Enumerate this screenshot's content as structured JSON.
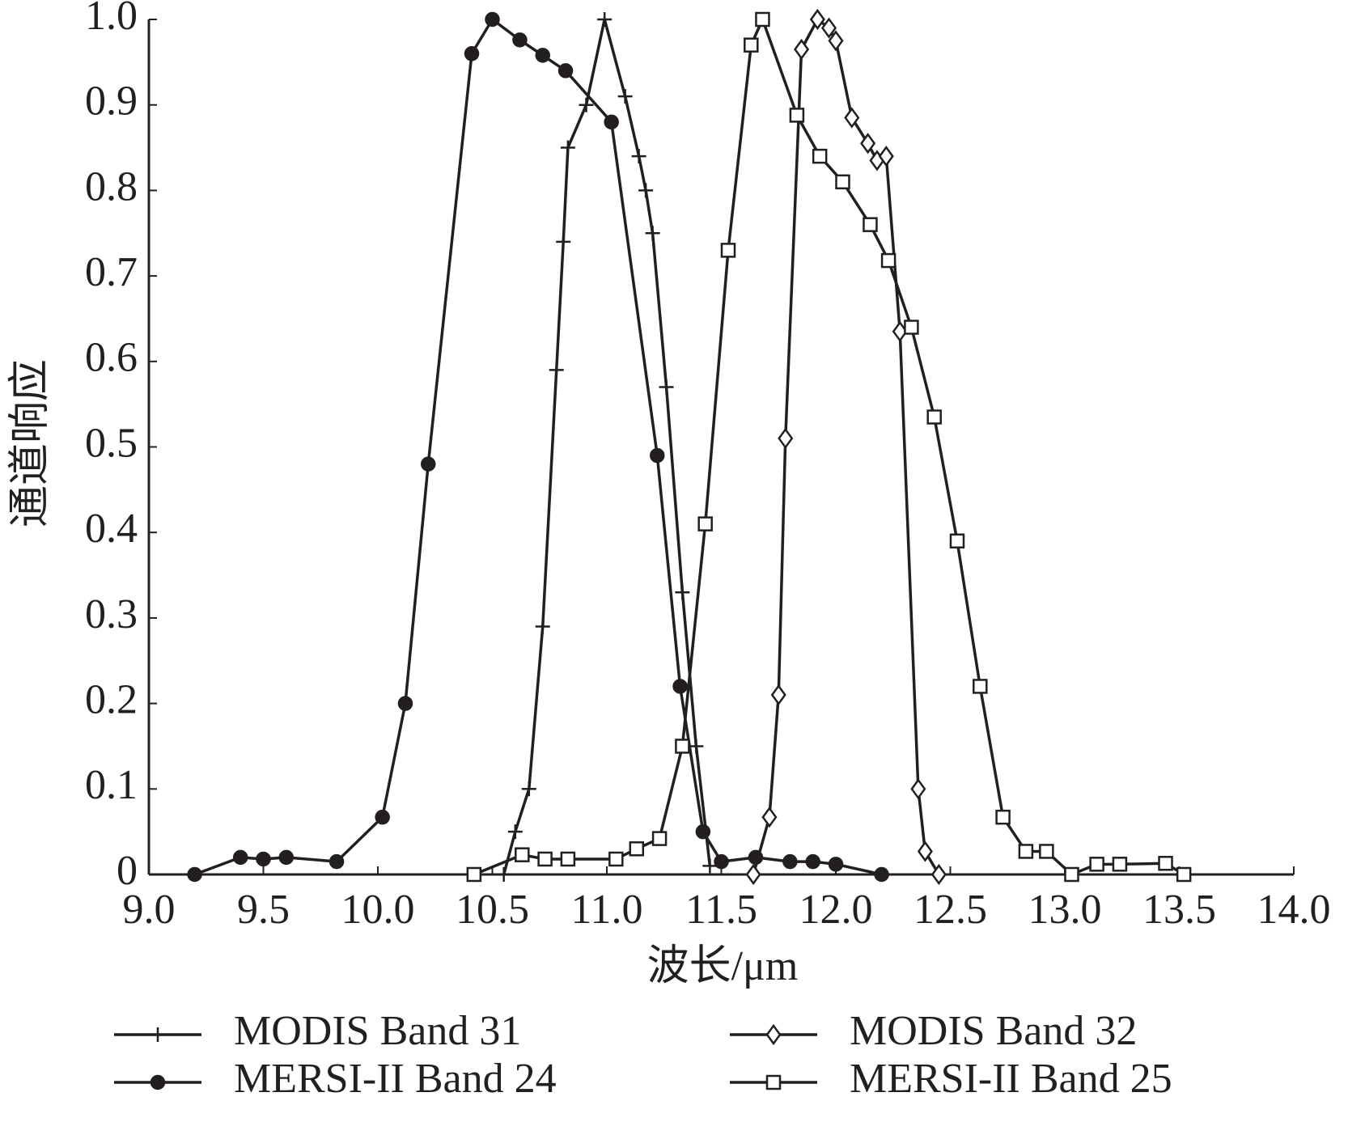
{
  "chart_data": {
    "type": "line",
    "x_label": "波长/μm",
    "y_label": "通道响应",
    "xlim": [
      9,
      14
    ],
    "ylim": [
      0,
      1
    ],
    "xticks": [
      {
        "value": 9,
        "label": "9.0"
      },
      {
        "value": 9.5,
        "label": "9.5"
      },
      {
        "value": 10,
        "label": "10.0"
      },
      {
        "value": 10.5,
        "label": "10.5"
      },
      {
        "value": 11,
        "label": "11.0"
      },
      {
        "value": 11.5,
        "label": "11.5"
      },
      {
        "value": 12,
        "label": "12.0"
      },
      {
        "value": 12.5,
        "label": "12.5"
      },
      {
        "value": 13,
        "label": "13.0"
      },
      {
        "value": 13.5,
        "label": "13.5"
      },
      {
        "value": 14,
        "label": "14.0"
      }
    ],
    "yticks": [
      0,
      0.1,
      0.2,
      0.3,
      0.4,
      0.5,
      0.6,
      0.7,
      0.8,
      0.9,
      {
        "value": 1,
        "label": "1.0"
      }
    ],
    "color": "#231f20",
    "series": [
      {
        "name": "MODIS Band 31",
        "marker": "plus",
        "x": [
          10.55,
          10.6,
          10.66,
          10.72,
          10.78,
          10.81,
          10.83,
          10.91,
          10.99,
          11.08,
          11.14,
          11.17,
          11.2,
          11.26,
          11.33,
          11.39,
          11.45
        ],
        "values": [
          0,
          0.05,
          0.1,
          0.29,
          0.59,
          0.74,
          0.85,
          0.9,
          1.0,
          0.91,
          0.84,
          0.8,
          0.75,
          0.57,
          0.33,
          0.15,
          0.01
        ]
      },
      {
        "name": "MODIS Band 32",
        "marker": "diamond",
        "x": [
          11.64,
          11.71,
          11.75,
          11.78,
          11.85,
          11.92,
          11.97,
          12.0,
          12.07,
          12.14,
          12.18,
          12.22,
          12.28,
          12.36,
          12.39,
          12.45
        ],
        "values": [
          0,
          0.067,
          0.21,
          0.51,
          0.965,
          1.0,
          0.99,
          0.975,
          0.885,
          0.855,
          0.835,
          0.84,
          0.635,
          0.1,
          0.027,
          0
        ]
      },
      {
        "name": "MERSI-II Band 24",
        "marker": "circle",
        "x": [
          9.2,
          9.4,
          9.5,
          9.6,
          9.82,
          10.02,
          10.12,
          10.22,
          10.41,
          10.5,
          10.62,
          10.72,
          10.82,
          11.02,
          11.22,
          11.32,
          11.42,
          11.5,
          11.65,
          11.8,
          11.9,
          12.0,
          12.2
        ],
        "values": [
          0,
          0.02,
          0.018,
          0.02,
          0.015,
          0.067,
          0.2,
          0.48,
          0.96,
          1.0,
          0.976,
          0.958,
          0.94,
          0.88,
          0.49,
          0.22,
          0.05,
          0.015,
          0.02,
          0.015,
          0.015,
          0.012,
          0
        ]
      },
      {
        "name": "MERSI-II Band 25",
        "marker": "square",
        "x": [
          10.42,
          10.63,
          10.73,
          10.83,
          11.04,
          11.13,
          11.23,
          11.33,
          11.43,
          11.53,
          11.63,
          11.68,
          11.83,
          11.93,
          12.03,
          12.15,
          12.23,
          12.33,
          12.43,
          12.53,
          12.63,
          12.73,
          12.83,
          12.92,
          13.03,
          13.14,
          13.24,
          13.44,
          13.52
        ],
        "values": [
          0,
          0.023,
          0.018,
          0.018,
          0.018,
          0.03,
          0.042,
          0.15,
          0.41,
          0.73,
          0.97,
          1.0,
          0.888,
          0.84,
          0.81,
          0.76,
          0.718,
          0.64,
          0.535,
          0.39,
          0.22,
          0.067,
          0.027,
          0.027,
          0,
          0.012,
          0.012,
          0.013,
          0
        ]
      }
    ]
  }
}
